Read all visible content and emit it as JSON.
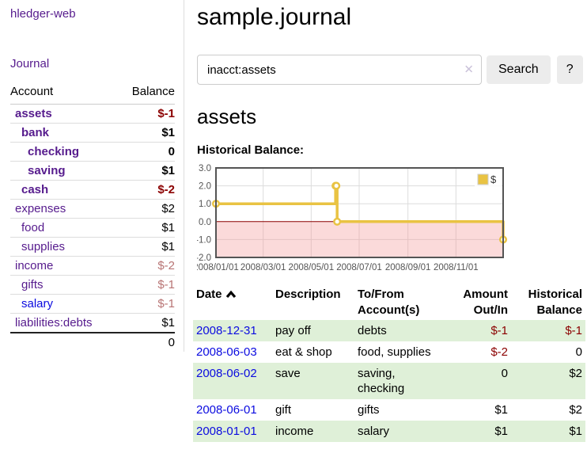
{
  "brand": "hledger-web",
  "nav": {
    "journal": "Journal"
  },
  "sidebar": {
    "account_header": "Account",
    "balance_header": "Balance",
    "accounts": [
      {
        "name": "assets",
        "depth": 1,
        "bold": true,
        "balance": "$-1"
      },
      {
        "name": "bank",
        "depth": 2,
        "bold": true,
        "balance": "$1"
      },
      {
        "name": "checking",
        "depth": 3,
        "bold": true,
        "balance": "0"
      },
      {
        "name": "saving",
        "depth": 3,
        "bold": true,
        "balance": "$1"
      },
      {
        "name": "cash",
        "depth": 2,
        "bold": true,
        "balance": "$-2"
      },
      {
        "name": "expenses",
        "depth": 1,
        "bold": false,
        "balance": "$2"
      },
      {
        "name": "food",
        "depth": 2,
        "bold": false,
        "balance": "$1"
      },
      {
        "name": "supplies",
        "depth": 2,
        "bold": false,
        "balance": "$1"
      },
      {
        "name": "income",
        "depth": 1,
        "bold": false,
        "balance": "$-2"
      },
      {
        "name": "gifts",
        "depth": 2,
        "bold": false,
        "balance": "$-1"
      },
      {
        "name": "salary",
        "depth": 2,
        "bold": false,
        "balance": "$-1",
        "unvisited": true
      },
      {
        "name": "liabilities:debts",
        "depth": 1,
        "bold": false,
        "balance": "$1"
      }
    ],
    "total": "0"
  },
  "main": {
    "title": "sample.journal",
    "search": {
      "value": "inacct:assets",
      "clear_icon": "✕",
      "search_button": "Search",
      "help_button": "?"
    },
    "account_title": "assets",
    "chart_heading": "Historical Balance:"
  },
  "chart_data": {
    "type": "line",
    "style": "step",
    "title": "Historical Balance",
    "legend": {
      "position": "top-right",
      "label": "$"
    },
    "ylim": [
      -2,
      3
    ],
    "x_domain": [
      "2008-01-01",
      "2008-12-31"
    ],
    "x_domain_days": 365,
    "y_ticks": [
      {
        "label": "3.0",
        "value": 3
      },
      {
        "label": "2.0",
        "value": 2
      },
      {
        "label": "1.0",
        "value": 1
      },
      {
        "label": "0.0",
        "value": 0
      },
      {
        "label": "-1.0",
        "value": -1
      },
      {
        "label": "-2.0",
        "value": -2
      }
    ],
    "x_ticks": [
      {
        "label": "2008/01/01",
        "day": 0
      },
      {
        "label": "2008/03/01",
        "day": 60
      },
      {
        "label": "2008/05/01",
        "day": 121
      },
      {
        "label": "2008/07/01",
        "day": 182
      },
      {
        "label": "2008/09/01",
        "day": 244
      },
      {
        "label": "2008/11/01",
        "day": 305
      }
    ],
    "series": [
      {
        "name": "$",
        "color": "#e9c343",
        "points": [
          {
            "date": "2008-01-01",
            "day": 0,
            "value": 1
          },
          {
            "date": "2008-06-01",
            "day": 152,
            "value": 2
          },
          {
            "date": "2008-06-02",
            "day": 153,
            "value": 2
          },
          {
            "date": "2008-06-03",
            "day": 154,
            "value": 0
          },
          {
            "date": "2008-12-31",
            "day": 365,
            "value": -1
          }
        ]
      }
    ],
    "grid": true,
    "grid_color": "#dcdcdc",
    "border_color": "#545454",
    "zero_line_color": "#8b0000",
    "negative_fill": "rgba(244,150,150,0.35)",
    "tick_label_color": "#545454"
  },
  "register": {
    "headers": {
      "date": "Date",
      "description": "Description",
      "accounts": "To/From Account(s)",
      "amount": "Amount Out/In",
      "balance": "Historical Balance"
    },
    "sort": {
      "column": "Date",
      "direction": "ascending"
    },
    "rows": [
      {
        "date": "2008-12-31",
        "description": "pay off",
        "accounts": "debts",
        "amount": "$-1",
        "balance": "$-1"
      },
      {
        "date": "2008-06-03",
        "description": "eat & shop",
        "accounts": "food, supplies",
        "amount": "$-2",
        "balance": "0"
      },
      {
        "date": "2008-06-02",
        "description": "save",
        "accounts": "saving, checking",
        "amount": "0",
        "balance": "$2"
      },
      {
        "date": "2008-06-01",
        "description": "gift",
        "accounts": "gifts",
        "amount": "$1",
        "balance": "$2"
      },
      {
        "date": "2008-01-01",
        "description": "income",
        "accounts": "salary",
        "amount": "$1",
        "balance": "$1"
      }
    ]
  },
  "colors": {
    "link_purple": "#561b8d",
    "link_blue": "#0b0be0",
    "negative": "#8b0000",
    "negative_soft": "#b87474",
    "row_green": "#dff0d8",
    "button_bg": "#ececec",
    "chart_gold": "#e9c343",
    "divider": "#dddddd"
  }
}
